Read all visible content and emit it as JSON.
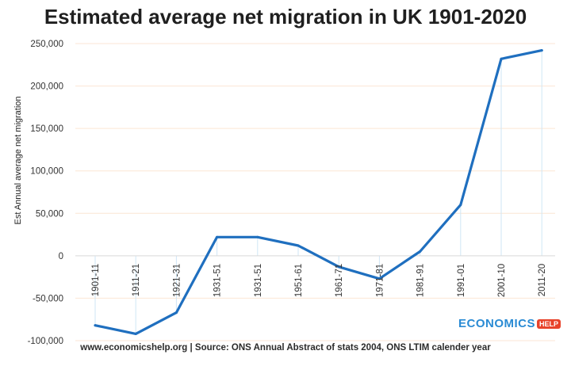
{
  "chart_data": {
    "type": "line",
    "title": "Estimated average net migration in UK 1901-2020",
    "ylabel": "Est Annual average net migration",
    "xlabel": "",
    "categories": [
      "1901-11",
      "1911-21",
      "1921-31",
      "1931-51",
      "1931-51",
      "1951-61",
      "1961-71",
      "1971-81",
      "1981-91",
      "1991-01",
      "2001-10",
      "2011-20"
    ],
    "values": [
      -82000,
      -92000,
      -67000,
      22000,
      22000,
      12000,
      -13000,
      -27000,
      5000,
      60000,
      232000,
      242000
    ],
    "ylim": [
      -100000,
      250000
    ],
    "yticks": [
      -100000,
      -50000,
      0,
      50000,
      100000,
      150000,
      200000,
      250000
    ],
    "ytick_labels": [
      "-100,000",
      "-50,000",
      "0",
      "50,000",
      "100,000",
      "150,000",
      "200,000",
      "250,000"
    ],
    "grid": true,
    "line_color": "#1f6fbf",
    "grid_color": "#fbe6d4",
    "drop_line_color": "#cfe6f6"
  },
  "footer": "www.economicshelp.org  | Source: ONS Annual Abstract of stats 2004, ONS LTIM calender year",
  "logo": {
    "word": "ECONOMICS",
    "badge": "HELP"
  }
}
